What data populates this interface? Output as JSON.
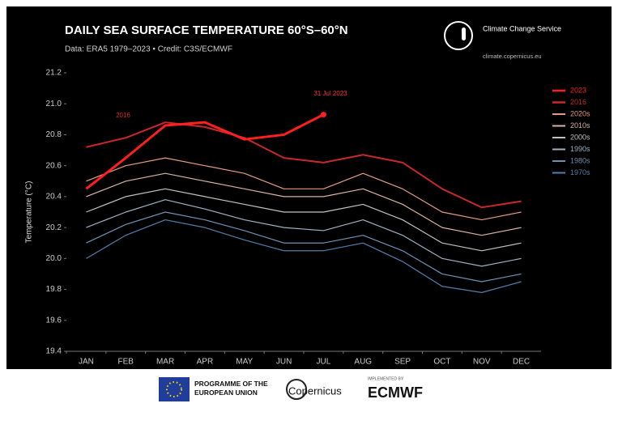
{
  "chart_data": {
    "type": "line",
    "title": "DAILY SEA SURFACE TEMPERATURE 60°S–60°N",
    "subtitle": "Data: ERA5 1979–2023 • Credit: C3S/ECMWF",
    "y_label": "Temperature (°C)",
    "annotations": [
      {
        "text": "2016"
      },
      {
        "text": "31 Jul 2023"
      }
    ],
    "categories": [
      "JAN",
      "FEB",
      "MAR",
      "APR",
      "MAY",
      "JUN",
      "JUL",
      "AUG",
      "SEP",
      "OCT",
      "NOV",
      "DEC"
    ],
    "ylim": [
      19.4,
      21.2
    ],
    "yticks": [
      19.4,
      19.6,
      19.8,
      {
        "value": 20.0,
        "label": "20.0"
      },
      20.2,
      20.4,
      20.6,
      20.8,
      {
        "value": 21.0,
        "label": "21.0"
      },
      21.2
    ],
    "series": [
      {
        "name": "2023",
        "color": "#ff1f1f",
        "values": [
          20.45,
          20.65,
          20.86,
          20.88,
          20.77,
          20.8,
          20.93,
          null,
          null,
          null,
          null,
          null
        ]
      },
      {
        "name": "2016",
        "color": "#c8282a",
        "values": [
          20.72,
          20.78,
          20.88,
          20.85,
          20.78,
          20.65,
          20.62,
          20.67,
          20.62,
          20.45,
          20.33,
          20.37
        ]
      },
      {
        "name": "2020s",
        "color": "#e39c7e",
        "values": [
          20.5,
          20.6,
          20.65,
          20.6,
          20.55,
          20.45,
          20.45,
          20.55,
          20.45,
          20.3,
          20.25,
          20.3
        ]
      },
      {
        "name": "2010s",
        "color": "#d8b2a4",
        "values": [
          20.4,
          20.5,
          20.55,
          20.5,
          20.45,
          20.4,
          20.4,
          20.45,
          20.35,
          20.2,
          20.15,
          20.2
        ]
      },
      {
        "name": "2000s",
        "color": "#c4c0c2",
        "values": [
          20.3,
          20.4,
          20.45,
          20.4,
          20.35,
          20.3,
          20.3,
          20.35,
          20.25,
          20.1,
          20.05,
          20.1
        ]
      },
      {
        "name": "1990s",
        "color": "#9fb0c2",
        "values": [
          20.2,
          20.3,
          20.38,
          20.32,
          20.25,
          20.2,
          20.18,
          20.25,
          20.15,
          20.0,
          19.95,
          20.0
        ]
      },
      {
        "name": "1980s",
        "color": "#6f91b3",
        "values": [
          20.1,
          20.22,
          20.3,
          20.25,
          20.18,
          20.1,
          20.1,
          20.15,
          20.05,
          19.9,
          19.85,
          19.9
        ]
      },
      {
        "name": "1970s",
        "color": "#4f80ab",
        "values": [
          20.0,
          20.15,
          20.25,
          20.2,
          20.12,
          20.05,
          20.05,
          20.1,
          19.98,
          19.82,
          19.78,
          19.85
        ]
      }
    ],
    "legend": "right"
  },
  "branding": {
    "service": "Climate Change Service",
    "url": "climate.copernicus.eu",
    "eu": "PROGRAMME OF THE EUROPEAN UNION",
    "copernicus": "Copernicus",
    "implemented": "IMPLEMENTED BY",
    "ecmwf": "ECMWF"
  }
}
